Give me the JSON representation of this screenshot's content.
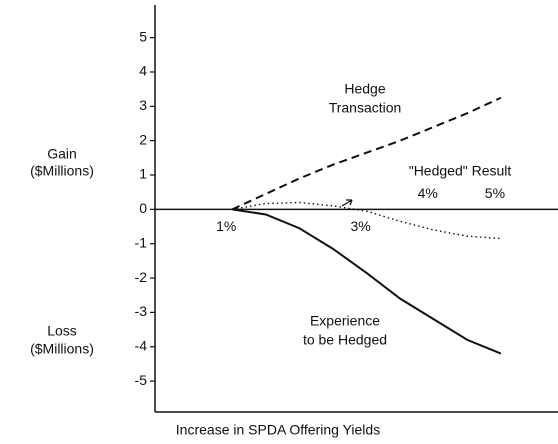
{
  "chart_data": {
    "type": "line",
    "x_label": "Increase in SPDA Offering Yields",
    "y_label_gain": [
      "Gain",
      "($Millions)"
    ],
    "y_label_loss": [
      "Loss",
      "($Millions)"
    ],
    "x": [
      1,
      1.5,
      2,
      2.5,
      3,
      3.5,
      4,
      4.5,
      5
    ],
    "series": [
      {
        "name_lines": [
          "Hedge",
          "Transaction"
        ],
        "color": "#111111",
        "style": "dashed",
        "values": [
          0,
          0.45,
          0.9,
          1.3,
          1.65,
          2.0,
          2.4,
          2.8,
          3.25
        ]
      },
      {
        "name_lines": [
          "\"Hedged\" Result"
        ],
        "color": "#111111",
        "style": "dotted",
        "values": [
          0,
          0.17,
          0.2,
          0.1,
          -0.05,
          -0.35,
          -0.6,
          -0.78,
          -0.85
        ]
      },
      {
        "name_lines": [
          "Experience",
          "to be Hedged"
        ],
        "color": "#111111",
        "style": "solid",
        "values": [
          0,
          -0.15,
          -0.55,
          -1.15,
          -1.85,
          -2.6,
          -3.2,
          -3.8,
          -4.2
        ]
      }
    ],
    "xlim": [
      -0.15,
      5.85
    ],
    "ylim": [
      -5.9,
      5.95
    ],
    "xticks": [
      {
        "value": 1,
        "label": "1%"
      },
      {
        "value": 3,
        "label": "3%"
      },
      {
        "value": 4,
        "label": "4%"
      },
      {
        "value": 5,
        "label": "5%"
      }
    ],
    "yticks": [
      -5,
      -4,
      -3,
      -2,
      -1,
      0,
      1,
      2,
      3,
      4,
      5
    ]
  }
}
